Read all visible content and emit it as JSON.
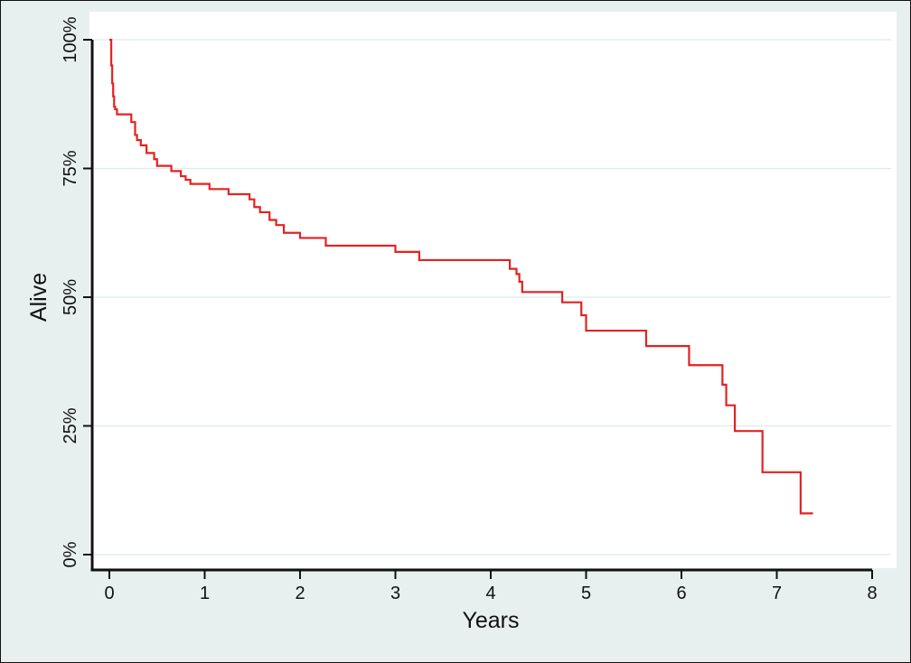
{
  "chart_data": {
    "type": "line",
    "title": "",
    "xlabel": "Years",
    "ylabel": "Alive",
    "xlim": [
      0,
      8
    ],
    "ylim": [
      0,
      1
    ],
    "x_ticks": [
      "0",
      "1",
      "2",
      "3",
      "4",
      "5",
      "6",
      "7",
      "8"
    ],
    "y_ticks": [
      "0%",
      "25%",
      "50%",
      "75%",
      "100%"
    ],
    "grid": "horizontal",
    "colors": {
      "background": "#e8efef",
      "plot_area": "#ffffff",
      "gridline": "#dfeaea",
      "line": "#e32222",
      "axis": "#111111"
    },
    "series": [
      {
        "style": "step",
        "x": [
          0,
          0.02,
          0.03,
          0.04,
          0.05,
          0.06,
          0.08,
          0.23,
          0.27,
          0.29,
          0.33,
          0.39,
          0.47,
          0.5,
          0.65,
          0.75,
          0.8,
          0.85,
          1.05,
          1.25,
          1.47,
          1.52,
          1.58,
          1.68,
          1.75,
          1.83,
          2.0,
          2.27,
          3.0,
          3.25,
          4.2,
          4.27,
          4.3,
          4.33,
          4.75,
          4.95,
          5.0,
          5.63,
          6.08,
          6.43,
          6.47,
          6.56,
          6.85,
          7.25,
          7.38
        ],
        "y": [
          1.0,
          0.95,
          0.915,
          0.89,
          0.87,
          0.865,
          0.855,
          0.84,
          0.815,
          0.805,
          0.795,
          0.78,
          0.768,
          0.755,
          0.745,
          0.735,
          0.728,
          0.72,
          0.71,
          0.7,
          0.69,
          0.675,
          0.665,
          0.65,
          0.64,
          0.625,
          0.615,
          0.6,
          0.588,
          0.572,
          0.555,
          0.545,
          0.53,
          0.51,
          0.49,
          0.465,
          0.435,
          0.405,
          0.368,
          0.33,
          0.29,
          0.24,
          0.16,
          0.08,
          0.08
        ]
      }
    ]
  }
}
